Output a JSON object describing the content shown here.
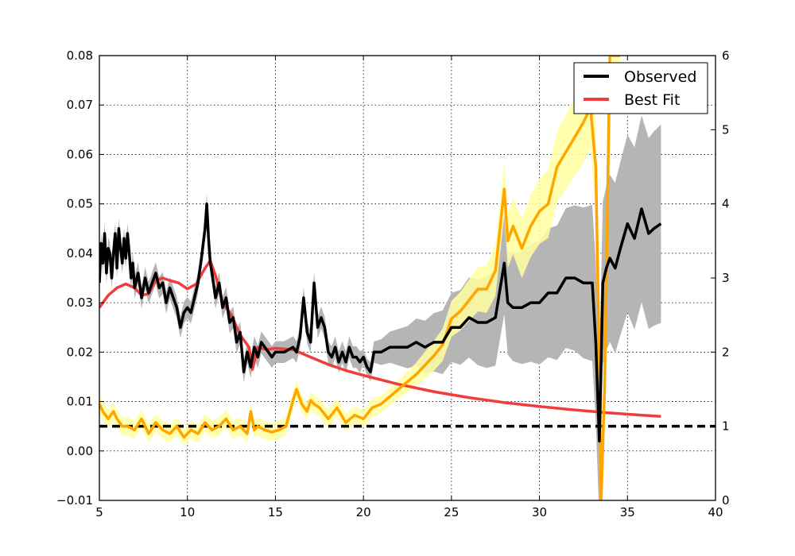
{
  "chart_data": {
    "type": "line",
    "title": "",
    "xlabel": "",
    "ylabel": "",
    "y2label": "",
    "xlim": [
      5,
      40
    ],
    "ylim": [
      -0.01,
      0.08
    ],
    "y2lim": [
      0,
      6
    ],
    "grid": true,
    "legend_position": "top-right",
    "x_ticks": [
      5,
      10,
      15,
      20,
      25,
      30,
      35,
      40
    ],
    "x_tick_labels": [
      "5",
      "10",
      "15",
      "20",
      "25",
      "30",
      "35",
      "40"
    ],
    "y_ticks": [
      -0.01,
      0.0,
      0.01,
      0.02,
      0.03,
      0.04,
      0.05,
      0.06,
      0.07,
      0.08
    ],
    "y_tick_labels": [
      "−0.01",
      "0.00",
      "0.01",
      "0.02",
      "0.03",
      "0.04",
      "0.05",
      "0.06",
      "0.07",
      "0.08"
    ],
    "y2_ticks": [
      0,
      1,
      2,
      3,
      4,
      5,
      6
    ],
    "y2_tick_labels": [
      "0",
      "1",
      "2",
      "3",
      "4",
      "5",
      "6"
    ],
    "colors": {
      "observed": "#000000",
      "observed_band": "#b5b5b5",
      "best_fit": "#f03c3c",
      "ratio": "#ffa500",
      "ratio_band": "#ffffa0",
      "reference": "#000000"
    },
    "series": [
      {
        "name": "Observed",
        "axis": "left",
        "x": [
          5.0,
          5.1,
          5.2,
          5.3,
          5.4,
          5.5,
          5.6,
          5.7,
          5.8,
          5.9,
          6.0,
          6.1,
          6.2,
          6.3,
          6.4,
          6.5,
          6.6,
          6.7,
          6.8,
          6.9,
          7.0,
          7.2,
          7.4,
          7.6,
          7.8,
          8.0,
          8.2,
          8.4,
          8.6,
          8.8,
          9.0,
          9.2,
          9.4,
          9.6,
          9.8,
          10.0,
          10.2,
          10.4,
          10.6,
          10.8,
          11.0,
          11.1,
          11.2,
          11.3,
          11.4,
          11.6,
          11.8,
          12.0,
          12.2,
          12.4,
          12.6,
          12.8,
          13.0,
          13.2,
          13.4,
          13.6,
          13.8,
          14.0,
          14.2,
          14.4,
          14.6,
          14.8,
          15.0,
          15.5,
          16.0,
          16.2,
          16.4,
          16.6,
          16.8,
          17.0,
          17.2,
          17.4,
          17.6,
          17.8,
          18.0,
          18.2,
          18.4,
          18.6,
          18.8,
          19.0,
          19.2,
          19.4,
          19.6,
          19.8,
          20.0,
          20.2,
          20.4,
          20.6,
          21.0,
          21.5,
          22.0,
          22.5,
          23.0,
          23.5,
          24.0,
          24.5,
          25.0,
          25.5,
          26.0,
          26.5,
          27.0,
          27.5,
          28.0,
          28.2,
          28.5,
          29.0,
          29.5,
          30.0,
          30.5,
          31.0,
          31.5,
          32.0,
          32.5,
          33.0,
          33.2,
          33.4,
          33.6,
          33.8,
          34.0,
          34.3,
          34.6,
          35.0,
          35.4,
          35.8,
          36.2,
          36.5,
          36.9
        ],
        "y": [
          0.034,
          0.042,
          0.038,
          0.044,
          0.036,
          0.041,
          0.04,
          0.035,
          0.04,
          0.044,
          0.037,
          0.045,
          0.041,
          0.038,
          0.043,
          0.039,
          0.044,
          0.04,
          0.035,
          0.038,
          0.033,
          0.036,
          0.031,
          0.035,
          0.032,
          0.034,
          0.036,
          0.033,
          0.034,
          0.03,
          0.033,
          0.031,
          0.029,
          0.025,
          0.028,
          0.029,
          0.028,
          0.031,
          0.034,
          0.039,
          0.045,
          0.05,
          0.043,
          0.038,
          0.036,
          0.031,
          0.034,
          0.029,
          0.031,
          0.026,
          0.027,
          0.022,
          0.024,
          0.016,
          0.02,
          0.017,
          0.021,
          0.019,
          0.022,
          0.021,
          0.02,
          0.019,
          0.02,
          0.02,
          0.021,
          0.02,
          0.023,
          0.031,
          0.024,
          0.022,
          0.034,
          0.025,
          0.027,
          0.025,
          0.02,
          0.019,
          0.021,
          0.018,
          0.02,
          0.018,
          0.021,
          0.019,
          0.019,
          0.018,
          0.019,
          0.017,
          0.016,
          0.02,
          0.02,
          0.021,
          0.021,
          0.021,
          0.022,
          0.021,
          0.022,
          0.022,
          0.025,
          0.025,
          0.027,
          0.026,
          0.026,
          0.027,
          0.038,
          0.03,
          0.029,
          0.029,
          0.03,
          0.03,
          0.032,
          0.032,
          0.035,
          0.035,
          0.034,
          0.034,
          0.022,
          0.002,
          0.034,
          0.037,
          0.039,
          0.037,
          0.041,
          0.046,
          0.043,
          0.049,
          0.044,
          0.045,
          0.046
        ]
      },
      {
        "name": "Best Fit",
        "axis": "left",
        "x": [
          5.0,
          5.5,
          6.0,
          6.5,
          7.0,
          7.4,
          7.8,
          8.2,
          8.6,
          9.0,
          9.5,
          10.0,
          10.5,
          11.0,
          11.3,
          11.6,
          12.0,
          12.5,
          13.0,
          13.5,
          13.7,
          14.0,
          14.5,
          15.0,
          16.0,
          17.0,
          18.0,
          19.0,
          20.0,
          22.0,
          24.0,
          26.0,
          28.0,
          30.0,
          32.0,
          34.0,
          36.0,
          36.9
        ],
        "y": [
          0.029,
          0.0315,
          0.033,
          0.0338,
          0.033,
          0.0315,
          0.0318,
          0.0345,
          0.035,
          0.0345,
          0.034,
          0.0328,
          0.0338,
          0.037,
          0.0385,
          0.0355,
          0.03,
          0.0275,
          0.0235,
          0.021,
          0.0165,
          0.021,
          0.0205,
          0.0208,
          0.0205,
          0.019,
          0.0175,
          0.0163,
          0.0153,
          0.0135,
          0.012,
          0.0108,
          0.0098,
          0.009,
          0.0083,
          0.0077,
          0.0072,
          0.007
        ]
      },
      {
        "name": "",
        "axis": "right",
        "x": [
          5.0,
          5.2,
          5.5,
          5.8,
          6.0,
          6.3,
          6.6,
          7.0,
          7.4,
          7.8,
          8.2,
          8.6,
          9.0,
          9.4,
          9.8,
          10.2,
          10.6,
          11.0,
          11.4,
          11.8,
          12.2,
          12.6,
          13.0,
          13.4,
          13.6,
          13.8,
          14.0,
          14.4,
          14.8,
          15.2,
          15.6,
          16.0,
          16.2,
          16.5,
          16.8,
          17.0,
          17.2,
          17.5,
          18.0,
          18.5,
          19.0,
          19.5,
          20.0,
          20.5,
          21.0,
          22.0,
          23.0,
          24.0,
          24.5,
          25.0,
          25.5,
          26.0,
          26.5,
          27.0,
          27.5,
          28.0,
          28.2,
          28.5,
          29.0,
          29.5,
          30.0,
          30.5,
          31.0,
          31.5,
          32.0,
          32.5,
          32.9,
          33.2,
          33.35,
          33.5,
          33.7,
          34.0,
          34.3,
          34.6
        ],
        "y": [
          1.3,
          1.2,
          1.1,
          1.2,
          1.1,
          1.0,
          1.0,
          0.95,
          1.1,
          0.9,
          1.05,
          0.95,
          0.9,
          1.0,
          0.85,
          0.95,
          0.9,
          1.05,
          0.95,
          1.0,
          1.1,
          0.95,
          1.0,
          0.9,
          1.2,
          0.95,
          1.0,
          0.95,
          0.92,
          0.95,
          1.0,
          1.35,
          1.5,
          1.3,
          1.2,
          1.35,
          1.3,
          1.25,
          1.1,
          1.25,
          1.05,
          1.15,
          1.1,
          1.25,
          1.3,
          1.5,
          1.7,
          1.95,
          2.1,
          2.45,
          2.55,
          2.7,
          2.85,
          2.85,
          3.1,
          4.2,
          3.5,
          3.7,
          3.4,
          3.7,
          3.9,
          4.0,
          4.5,
          4.7,
          4.9,
          5.1,
          5.3,
          4.5,
          2.5,
          0.0,
          1.5,
          6.0,
          6.0,
          6.0
        ]
      }
    ],
    "reference_line": {
      "axis": "right",
      "y": 1.0,
      "style": "dashed"
    }
  },
  "legend": {
    "items": [
      {
        "label": "Observed",
        "color": "#000000"
      },
      {
        "label": "Best Fit",
        "color": "#f03c3c"
      }
    ]
  }
}
